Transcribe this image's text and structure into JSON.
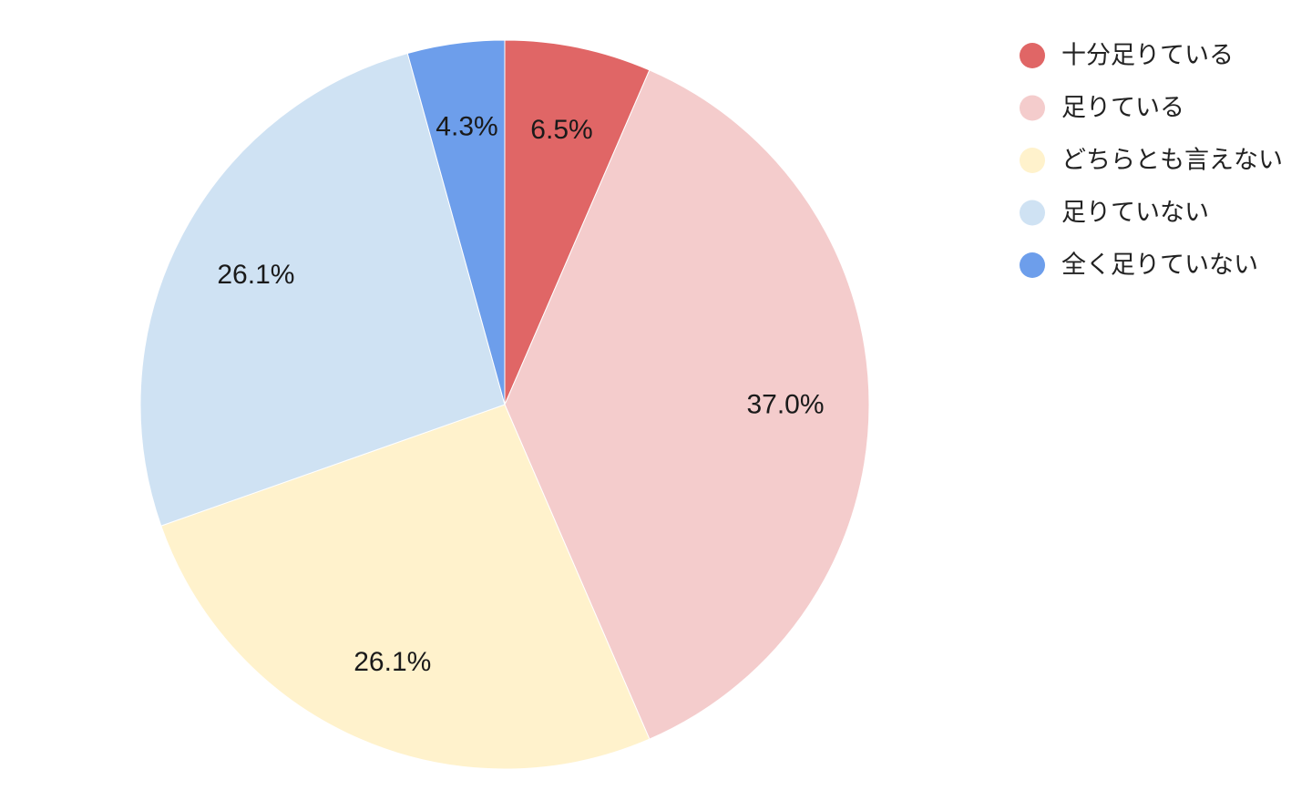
{
  "chart_data": {
    "type": "pie",
    "title": "",
    "start_angle": "12 o'clock",
    "direction": "clockwise",
    "legend_position": "right-top",
    "slices": [
      {
        "label": "十分足りている",
        "value": 6.5,
        "display": "6.5%",
        "color": "#e06666"
      },
      {
        "label": "足りている",
        "value": 37.0,
        "display": "37.0%",
        "color": "#f4cccc"
      },
      {
        "label": "どちらとも言えない",
        "value": 26.1,
        "display": "26.1%",
        "color": "#fff2cc"
      },
      {
        "label": "足りていない",
        "value": 26.1,
        "display": "26.1%",
        "color": "#cfe2f3"
      },
      {
        "label": "全く足りていない",
        "value": 4.3,
        "display": "4.3%",
        "color": "#6d9eeb"
      }
    ]
  }
}
